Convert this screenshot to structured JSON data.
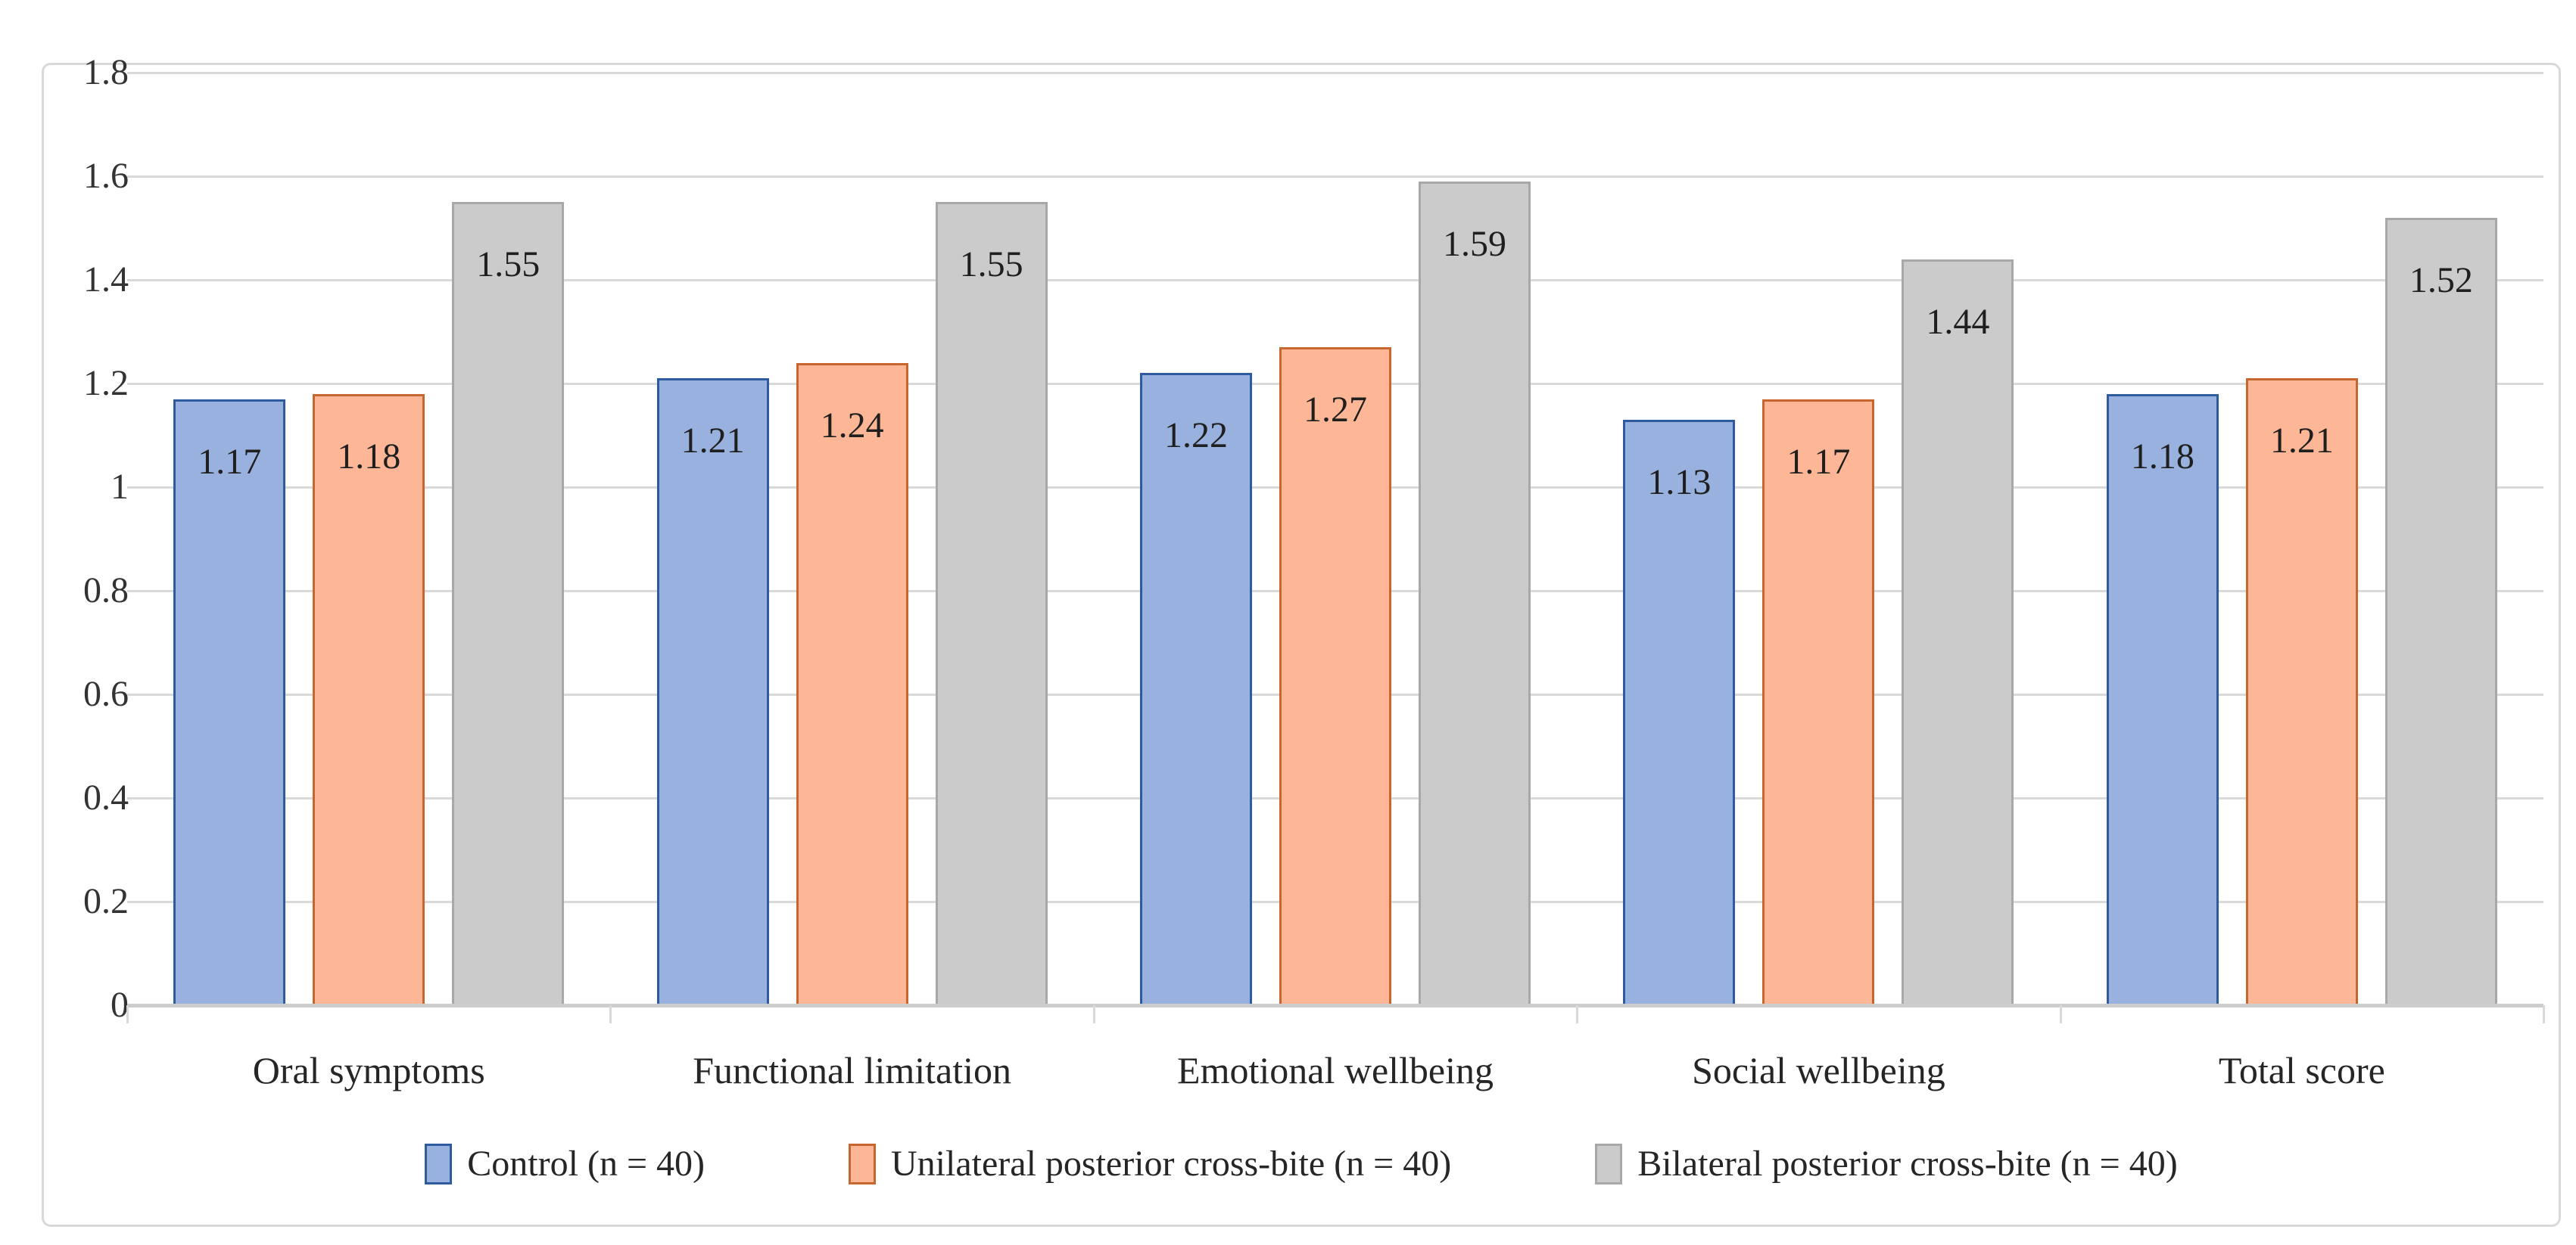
{
  "chart_data": {
    "type": "bar",
    "title": "",
    "xlabel": "",
    "ylabel": "",
    "ylim": [
      0,
      1.8
    ],
    "y_ticks": [
      0,
      0.2,
      0.4,
      0.6,
      0.8,
      1,
      1.2,
      1.4,
      1.6,
      1.8
    ],
    "y_tick_labels": [
      "0",
      "0.2",
      "0.4",
      "0.6",
      "0.8",
      "1",
      "1.2",
      "1.4",
      "1.6",
      "1.8"
    ],
    "grid": true,
    "data_labels": true,
    "legend_position": "bottom",
    "categories": [
      "Oral symptoms",
      "Functional limitation",
      "Emotional wellbeing",
      "Social wellbeing",
      "Total score"
    ],
    "series": [
      {
        "name": "Control (n = 40)",
        "values": [
          1.17,
          1.21,
          1.22,
          1.13,
          1.18
        ],
        "labels": [
          "1.17",
          "1.21",
          "1.22",
          "1.13",
          "1.18"
        ],
        "fill": "#99B1DF",
        "border": "#2E5B9D"
      },
      {
        "name": "Unilateral posterior cross-bite (n = 40)",
        "values": [
          1.18,
          1.24,
          1.27,
          1.17,
          1.21
        ],
        "labels": [
          "1.18",
          "1.24",
          "1.27",
          "1.17",
          "1.21"
        ],
        "fill": "#FDB696",
        "border": "#C86630"
      },
      {
        "name": "Bilateral posterior cross-bite (n = 40)",
        "values": [
          1.55,
          1.55,
          1.59,
          1.44,
          1.52
        ],
        "labels": [
          "1.55",
          "1.55",
          "1.59",
          "1.44",
          "1.52"
        ],
        "fill": "#CBCBCB",
        "border": "#A8A8A8"
      }
    ],
    "colors": {
      "gridline": "#D9D9D9",
      "axis_line": "#CDCDCD",
      "chart_border": "#D9D9D9",
      "axis_text": "#333333",
      "data_label_text": "#1f1f1f"
    }
  }
}
